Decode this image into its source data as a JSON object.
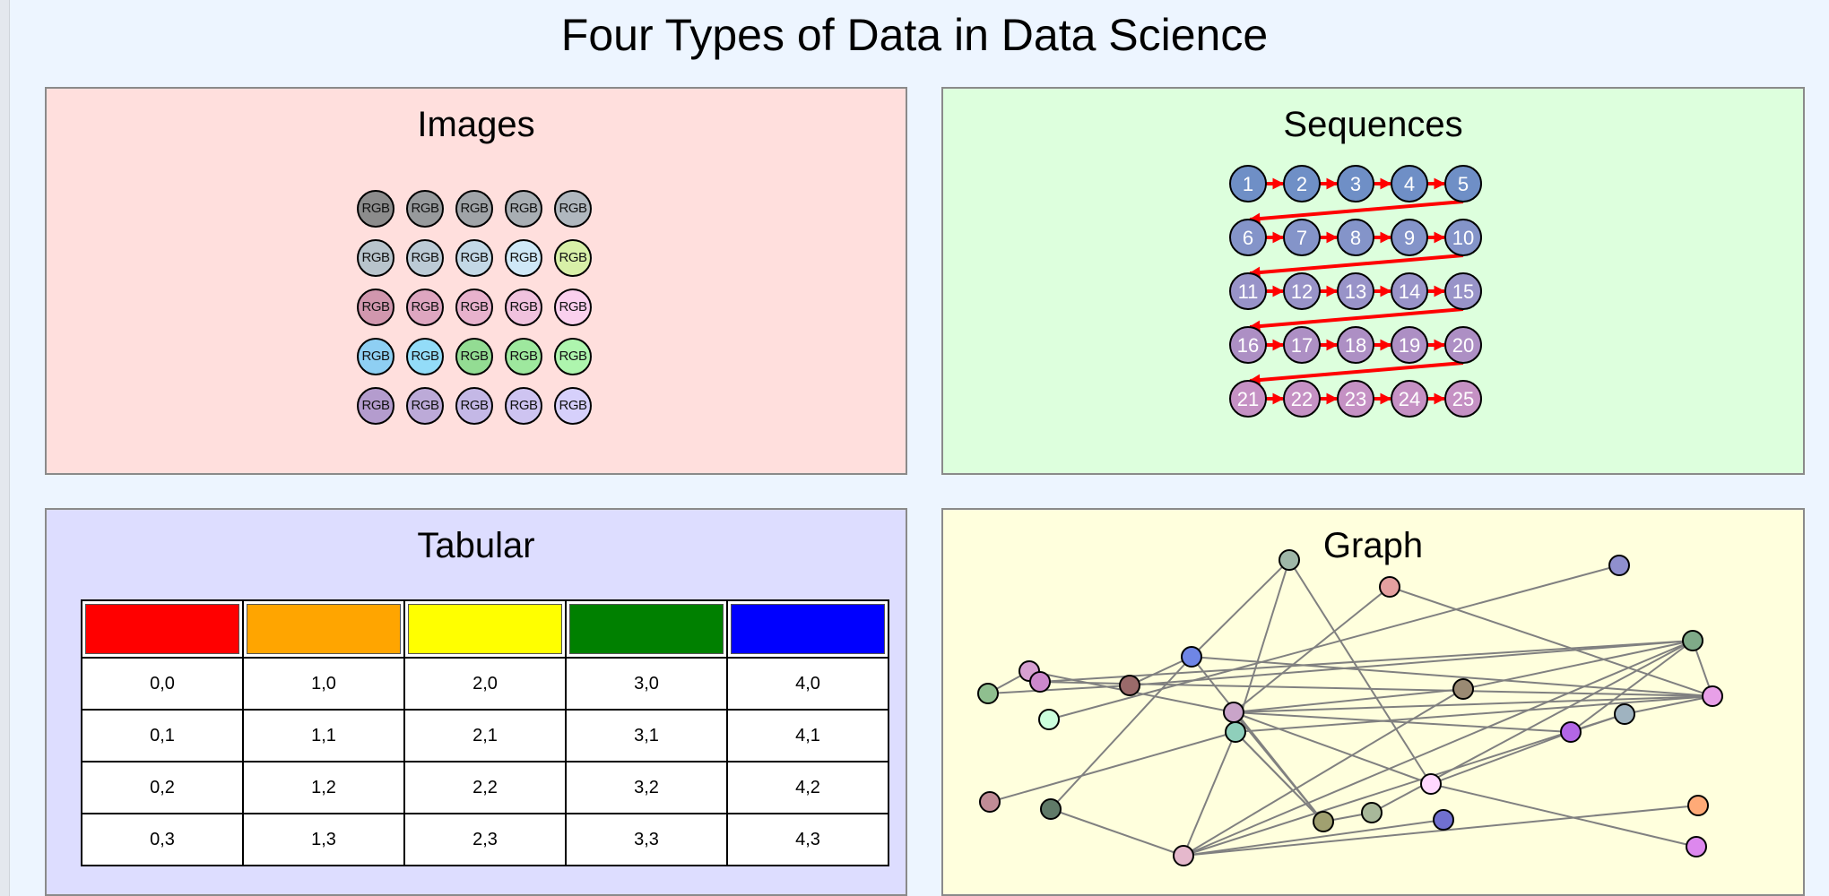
{
  "title": "Four Types of Data in Data Science",
  "panels": {
    "images": {
      "title": "Images",
      "background": "#ffdfdd"
    },
    "sequences": {
      "title": "Sequences",
      "background": "#ddffdd"
    },
    "tabular": {
      "title": "Tabular",
      "background": "#ddddff"
    },
    "graph": {
      "title": "Graph",
      "background": "#ffffdd"
    }
  },
  "images": {
    "cell_label": "RGB",
    "pixels": [
      [
        "#8c8c8c",
        "#979a9c",
        "#a0a4a8",
        "#a8aeb3",
        "#b0b8bf"
      ],
      [
        "#b8c4cc",
        "#bccbd6",
        "#c3d8e6",
        "#cfe8f7",
        "#d8f0a8"
      ],
      [
        "#d197ae",
        "#dea6c0",
        "#e8b2cd",
        "#f0c2de",
        "#fad0ee"
      ],
      [
        "#8ecff3",
        "#93dcf8",
        "#93dc93",
        "#9ee89e",
        "#aef5ae"
      ],
      [
        "#b49cce",
        "#bcaad8",
        "#c4b8e6",
        "#cec4f1",
        "#d6d0fb"
      ]
    ]
  },
  "sequences": {
    "items": [
      "1",
      "2",
      "3",
      "4",
      "5",
      "6",
      "7",
      "8",
      "9",
      "10",
      "11",
      "12",
      "13",
      "14",
      "15",
      "16",
      "17",
      "18",
      "19",
      "20",
      "21",
      "22",
      "23",
      "24",
      "25"
    ],
    "row_colors": [
      "#6f8fc6",
      "#8494c9",
      "#9893c8",
      "#ad8fc4",
      "#c591c4"
    ],
    "arrow_color": "#ff0000"
  },
  "tabular": {
    "header_colors": [
      "#ff0000",
      "#ffa500",
      "#ffff00",
      "#008000",
      "#0000ff"
    ],
    "rows": [
      [
        "0,0",
        "1,0",
        "2,0",
        "3,0",
        "4,0"
      ],
      [
        "0,1",
        "1,1",
        "2,1",
        "3,1",
        "4,1"
      ],
      [
        "0,2",
        "1,2",
        "2,2",
        "3,2",
        "4,2"
      ],
      [
        "0,3",
        "1,3",
        "2,3",
        "3,3",
        "4,3"
      ]
    ]
  },
  "graph": {
    "edge_color": "#808080",
    "nodes": [
      {
        "id": "n0",
        "color": "#9fb7a8"
      },
      {
        "id": "n1",
        "color": "#8f8fce"
      },
      {
        "id": "n2",
        "color": "#e4a0a0"
      },
      {
        "id": "n3",
        "color": "#7faa88"
      },
      {
        "id": "n4",
        "color": "#6f86e6"
      },
      {
        "id": "n5",
        "color": "#d7a0d2"
      },
      {
        "id": "n6",
        "color": "#cc88cc"
      },
      {
        "id": "n7",
        "color": "#9a6a6a"
      },
      {
        "id": "n8",
        "color": "#8fbf8f"
      },
      {
        "id": "n9",
        "color": "#9a8a73"
      },
      {
        "id": "n10",
        "color": "#e8a0e8"
      },
      {
        "id": "n11",
        "color": "#ccffdd"
      },
      {
        "id": "n12",
        "color": "#c9a4c9"
      },
      {
        "id": "n13",
        "color": "#8fcfbb"
      },
      {
        "id": "n14",
        "color": "#9fb3c0"
      },
      {
        "id": "n15",
        "color": "#b266e6"
      },
      {
        "id": "n16",
        "color": "#c08c96"
      },
      {
        "id": "n17",
        "color": "#607a68"
      },
      {
        "id": "n18",
        "color": "#ffd8ff"
      },
      {
        "id": "n19",
        "color": "#ffaa77"
      },
      {
        "id": "n20",
        "color": "#a0a070"
      },
      {
        "id": "n21",
        "color": "#a8b89a"
      },
      {
        "id": "n22",
        "color": "#7070d0"
      },
      {
        "id": "n23",
        "color": "#e5b8cc"
      },
      {
        "id": "n24",
        "color": "#dd88ee"
      }
    ],
    "edges": [
      [
        "n0",
        "n4"
      ],
      [
        "n0",
        "n13"
      ],
      [
        "n0",
        "n18"
      ],
      [
        "n1",
        "n11"
      ],
      [
        "n2",
        "n12"
      ],
      [
        "n2",
        "n10"
      ],
      [
        "n3",
        "n10"
      ],
      [
        "n3",
        "n9"
      ],
      [
        "n3",
        "n15"
      ],
      [
        "n3",
        "n7"
      ],
      [
        "n4",
        "n10"
      ],
      [
        "n4",
        "n17"
      ],
      [
        "n4",
        "n20"
      ],
      [
        "n4",
        "n7"
      ],
      [
        "n5",
        "n8"
      ],
      [
        "n5",
        "n12"
      ],
      [
        "n6",
        "n3"
      ],
      [
        "n6",
        "n10"
      ],
      [
        "n7",
        "n8"
      ],
      [
        "n9",
        "n12"
      ],
      [
        "n9",
        "n23"
      ],
      [
        "n10",
        "n14"
      ],
      [
        "n10",
        "n13"
      ],
      [
        "n10",
        "n12"
      ],
      [
        "n12",
        "n20"
      ],
      [
        "n12",
        "n15"
      ],
      [
        "n13",
        "n23"
      ],
      [
        "n13",
        "n20"
      ],
      [
        "n14",
        "n15"
      ],
      [
        "n16",
        "n13"
      ],
      [
        "n17",
        "n23"
      ],
      [
        "n18",
        "n24"
      ],
      [
        "n18",
        "n15"
      ],
      [
        "n18",
        "n12"
      ],
      [
        "n19",
        "n23"
      ],
      [
        "n20",
        "n21"
      ],
      [
        "n20",
        "n13"
      ],
      [
        "n21",
        "n3"
      ],
      [
        "n22",
        "n23"
      ],
      [
        "n23",
        "n3"
      ],
      [
        "n23",
        "n14"
      ]
    ]
  }
}
